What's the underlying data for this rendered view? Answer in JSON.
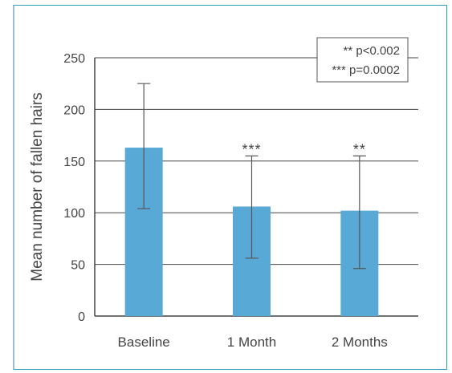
{
  "chart_data": {
    "type": "bar",
    "title": "",
    "xlabel": "",
    "ylabel": "Mean number of fallen hairs",
    "ylim": [
      0,
      250
    ],
    "yticks": [
      0,
      50,
      100,
      150,
      200,
      250
    ],
    "grid": true,
    "categories": [
      "Baseline",
      "1 Month",
      "2 Months"
    ],
    "values": [
      163,
      106,
      102
    ],
    "error_upper": [
      225,
      155,
      155
    ],
    "error_lower": [
      104,
      56,
      46
    ],
    "significance": [
      "",
      "***",
      "**"
    ],
    "bar_color": "#58a9d6",
    "legend": {
      "placement": "top-right",
      "lines": [
        "** p<0.002",
        "*** p=0.0002"
      ]
    }
  }
}
